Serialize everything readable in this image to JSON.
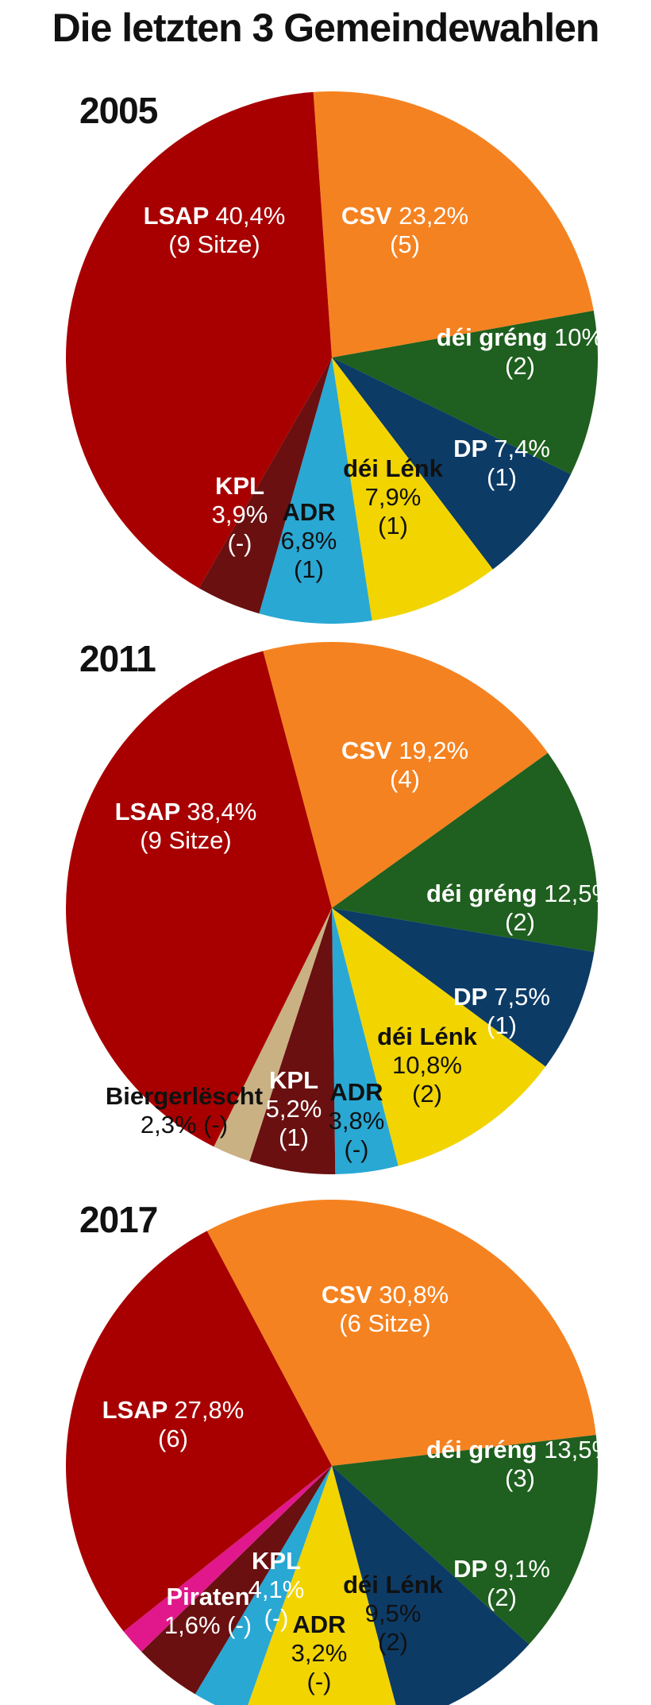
{
  "title": "Die letzten 3 Gemeindewahlen",
  "colors": {
    "LSAP": "#a80000",
    "CSV": "#f58220",
    "gruen": "#1f5f1f",
    "DP": "#0c3b66",
    "Lenk": "#f2d400",
    "ADR": "#29a8d4",
    "KPL": "#6a1010",
    "Bierger": "#c9b184",
    "Piraten": "#e0188c"
  },
  "chart_data": [
    {
      "type": "pie",
      "title": "2005",
      "slices": [
        {
          "party": "CSV",
          "value": 23.2,
          "line1": "CSV",
          "pct": "23,2%",
          "line2": "(5)",
          "color": "#f58220",
          "text_color": "#ffffff",
          "party_color": "#ffffff"
        },
        {
          "party": "déi gréng",
          "value": 10.0,
          "line1": "déi gréng",
          "pct": "10%",
          "line2": "(2)",
          "color": "#1f5f1f",
          "text_color": "#ffffff",
          "party_color": "#ffffff"
        },
        {
          "party": "DP",
          "value": 7.4,
          "line1": "DP",
          "pct": "7,4%",
          "line2": "(1)",
          "color": "#0c3b66",
          "text_color": "#ffffff",
          "party_color": "#ffffff"
        },
        {
          "party": "déi Lénk",
          "value": 7.9,
          "line1": "déi Lénk",
          "pct": "7,9%",
          "line2": "(1)",
          "color": "#f2d400",
          "text_color": "#111111",
          "party_color": "#111111"
        },
        {
          "party": "ADR",
          "value": 6.8,
          "line1": "ADR",
          "pct": "6,8%",
          "line2": "(1)",
          "color": "#29a8d4",
          "text_color": "#111111",
          "party_color": "#111111"
        },
        {
          "party": "KPL",
          "value": 3.9,
          "line1": "KPL",
          "pct": "3,9%",
          "line2": "(-)",
          "color": "#6a1010",
          "text_color": "#ffffff",
          "party_color": "#ffffff"
        },
        {
          "party": "LSAP",
          "value": 40.4,
          "line1": "LSAP",
          "pct": "40,4%",
          "line2": "(9 Sitze)",
          "color": "#a80000",
          "text_color": "#ffffff",
          "party_color": "#ffffff"
        }
      ]
    },
    {
      "type": "pie",
      "title": "2011",
      "slices": [
        {
          "party": "CSV",
          "value": 19.2,
          "line1": "CSV",
          "pct": "19,2%",
          "line2": "(4)",
          "color": "#f58220",
          "text_color": "#ffffff",
          "party_color": "#ffffff"
        },
        {
          "party": "déi gréng",
          "value": 12.5,
          "line1": "déi gréng",
          "pct": "12,5%",
          "line2": "(2)",
          "color": "#1f5f1f",
          "text_color": "#ffffff",
          "party_color": "#ffffff"
        },
        {
          "party": "DP",
          "value": 7.5,
          "line1": "DP",
          "pct": "7,5%",
          "line2": "(1)",
          "color": "#0c3b66",
          "text_color": "#ffffff",
          "party_color": "#ffffff"
        },
        {
          "party": "déi Lénk",
          "value": 10.8,
          "line1": "déi Lénk",
          "pct": "10,8%",
          "line2": "(2)",
          "color": "#f2d400",
          "text_color": "#111111",
          "party_color": "#111111"
        },
        {
          "party": "ADR",
          "value": 3.8,
          "line1": "ADR",
          "pct": "3,8%",
          "line2": "(-)",
          "color": "#29a8d4",
          "text_color": "#111111",
          "party_color": "#111111"
        },
        {
          "party": "KPL",
          "value": 5.2,
          "line1": "KPL",
          "pct": "5,2%",
          "line2": "(1)",
          "color": "#6a1010",
          "text_color": "#ffffff",
          "party_color": "#ffffff"
        },
        {
          "party": "Biergerlëscht",
          "value": 2.3,
          "line1": "Biergerlëscht",
          "pct": "2,3% (-)",
          "line2": "",
          "color": "#c9b184",
          "text_color": "#111111",
          "party_color": "#111111"
        },
        {
          "party": "LSAP",
          "value": 38.4,
          "line1": "LSAP",
          "pct": "38,4%",
          "line2": "(9 Sitze)",
          "color": "#a80000",
          "text_color": "#ffffff",
          "party_color": "#ffffff"
        }
      ]
    },
    {
      "type": "pie",
      "title": "2017",
      "slices": [
        {
          "party": "CSV",
          "value": 30.8,
          "line1": "CSV",
          "pct": "30,8%",
          "line2": "(6 Sitze)",
          "color": "#f58220",
          "text_color": "#ffffff",
          "party_color": "#ffffff"
        },
        {
          "party": "déi gréng",
          "value": 13.5,
          "line1": "déi gréng",
          "pct": "13,5%",
          "line2": "(3)",
          "color": "#1f5f1f",
          "text_color": "#ffffff",
          "party_color": "#ffffff"
        },
        {
          "party": "DP",
          "value": 9.1,
          "line1": "DP",
          "pct": "9,1%",
          "line2": "(2)",
          "color": "#0c3b66",
          "text_color": "#ffffff",
          "party_color": "#ffffff"
        },
        {
          "party": "déi Lénk",
          "value": 9.5,
          "line1": "déi Lénk",
          "pct": "9,5%",
          "line2": "(2)",
          "color": "#f2d400",
          "text_color": "#111111",
          "party_color": "#111111"
        },
        {
          "party": "ADR",
          "value": 3.2,
          "line1": "ADR",
          "pct": "3,2%",
          "line2": "(-)",
          "color": "#29a8d4",
          "text_color": "#111111",
          "party_color": "#111111"
        },
        {
          "party": "KPL",
          "value": 4.1,
          "line1": "KPL",
          "pct": "4,1%",
          "line2": "(-)",
          "color": "#6a1010",
          "text_color": "#ffffff",
          "party_color": "#ffffff"
        },
        {
          "party": "Piraten",
          "value": 1.6,
          "line1": "Piraten",
          "pct": "1,6% (-)",
          "line2": "",
          "color": "#e0188c",
          "text_color": "#ffffff",
          "party_color": "#ffffff"
        },
        {
          "party": "LSAP",
          "value": 27.8,
          "line1": "LSAP",
          "pct": "27,8%",
          "line2": "(6)",
          "color": "#a80000",
          "text_color": "#ffffff",
          "party_color": "#ffffff"
        }
      ]
    }
  ]
}
